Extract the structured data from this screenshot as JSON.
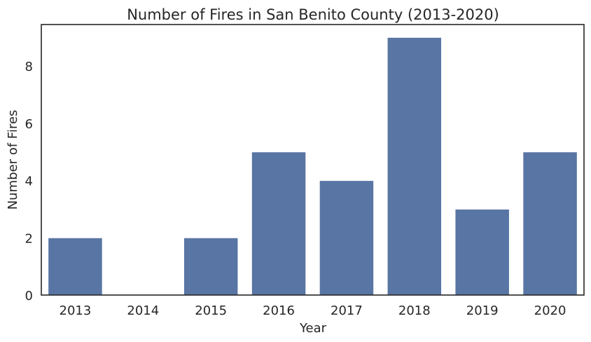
{
  "chart_data": {
    "type": "bar",
    "title": "Number of Fires in San Benito County (2013-2020)",
    "xlabel": "Year",
    "ylabel": "Number of Fires",
    "categories": [
      "2013",
      "2014",
      "2015",
      "2016",
      "2017",
      "2018",
      "2019",
      "2020"
    ],
    "values": [
      2,
      0,
      2,
      5,
      4,
      9,
      3,
      5
    ],
    "ylim": [
      0,
      9.45
    ],
    "yticks": [
      0,
      2,
      4,
      6,
      8
    ],
    "ytick_labels": [
      "0",
      "2",
      "4",
      "6",
      "8"
    ],
    "bar_color": "#5975a4",
    "grid": false,
    "legend": "none"
  }
}
